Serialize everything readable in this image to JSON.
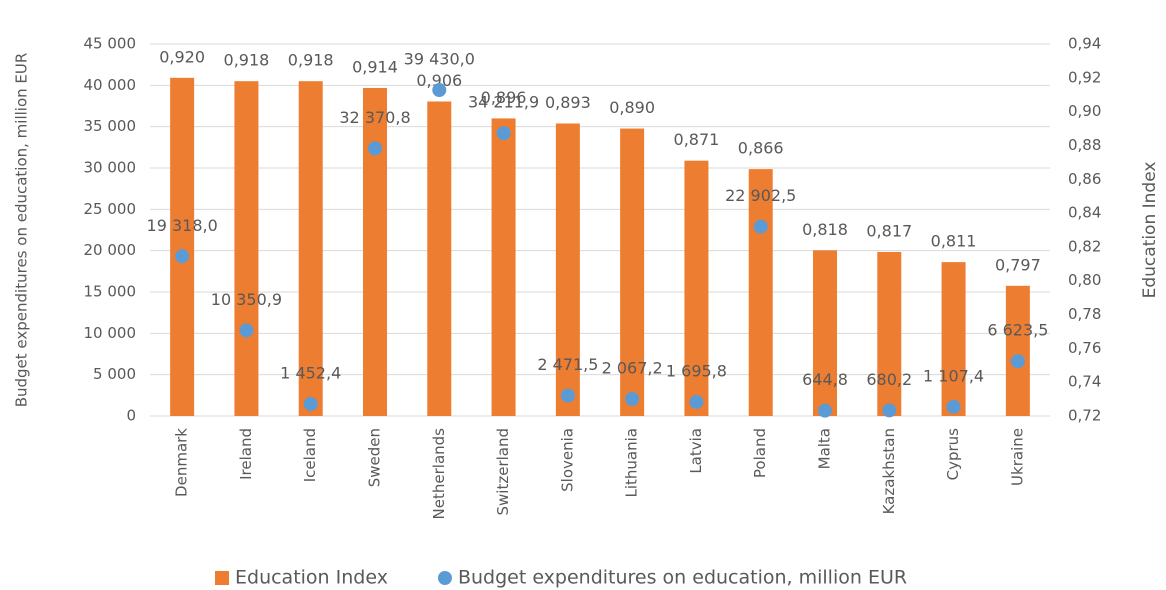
{
  "chart_data": {
    "type": "bar",
    "categories": [
      "Denmark",
      "Ireland",
      "Iceland",
      "Sweden",
      "Netherlands",
      "Switzerland",
      "Slovenia",
      "Lithuania",
      "Latvia",
      "Poland",
      "Malta",
      "Kazakhstan",
      "Cyprus",
      "Ukraine"
    ],
    "series": [
      {
        "name": "Education Index",
        "type": "bar",
        "axis": "y2",
        "color": "#ed7d31",
        "values": [
          0.92,
          0.918,
          0.918,
          0.914,
          0.906,
          0.896,
          0.893,
          0.89,
          0.871,
          0.866,
          0.818,
          0.817,
          0.811,
          0.797
        ],
        "value_labels": [
          "0,920",
          "0,918",
          "0,918",
          "0,914",
          "0,906",
          "0,896",
          "0,893",
          "0,890",
          "0,871",
          "0,866",
          "0,818",
          "0,817",
          "0,811",
          "0,797"
        ]
      },
      {
        "name": "Budget expenditures on education, million EUR",
        "type": "scatter",
        "axis": "y",
        "color": "#5b9bd5",
        "values": [
          19318.0,
          10350.9,
          1452.4,
          32370.8,
          39430.0,
          34211.9,
          2471.5,
          2067.2,
          1695.8,
          22902.5,
          644.8,
          680.2,
          1107.4,
          6623.5
        ],
        "value_labels": [
          "19 318,0",
          "10 350,9",
          "1 452,4",
          "32 370,8",
          "39 430,0",
          "34 211,9",
          "2 471,5",
          "2 067,2",
          "1 695,8",
          "22 902,5",
          "644,8",
          "680,2",
          "1 107,4",
          "6 623,5"
        ]
      }
    ],
    "y_label": "Budget expenditures on education, million EUR",
    "y2_label": "Education Index",
    "ylim": [
      0,
      45000
    ],
    "yticks": [
      0,
      {
        "value": 5000,
        "label": "5 000"
      },
      {
        "value": 10000,
        "label": "10 000"
      },
      {
        "value": 15000,
        "label": "15 000"
      },
      {
        "value": 20000,
        "label": "20 000"
      },
      {
        "value": 25000,
        "label": "25 000"
      },
      {
        "value": 30000,
        "label": "30 000"
      },
      {
        "value": 35000,
        "label": "35 000"
      },
      {
        "value": 40000,
        "label": "40 000"
      },
      {
        "value": 45000,
        "label": "45 000"
      }
    ],
    "y2lim": [
      0.72,
      0.94
    ],
    "y2ticks": [
      {
        "value": 0.72,
        "label": "0,72"
      },
      {
        "value": 0.74,
        "label": "0,74"
      },
      {
        "value": 0.76,
        "label": "0,76"
      },
      {
        "value": 0.78,
        "label": "0,78"
      },
      {
        "value": 0.8,
        "label": "0,80"
      },
      {
        "value": 0.82,
        "label": "0,82"
      },
      {
        "value": 0.84,
        "label": "0,84"
      },
      {
        "value": 0.86,
        "label": "0,86"
      },
      {
        "value": 0.88,
        "label": "0,88"
      },
      {
        "value": 0.9,
        "label": "0,90"
      },
      {
        "value": 0.92,
        "label": "0,92"
      },
      {
        "value": 0.94,
        "label": "0,94"
      }
    ],
    "grid": true,
    "legend": "bottom"
  }
}
